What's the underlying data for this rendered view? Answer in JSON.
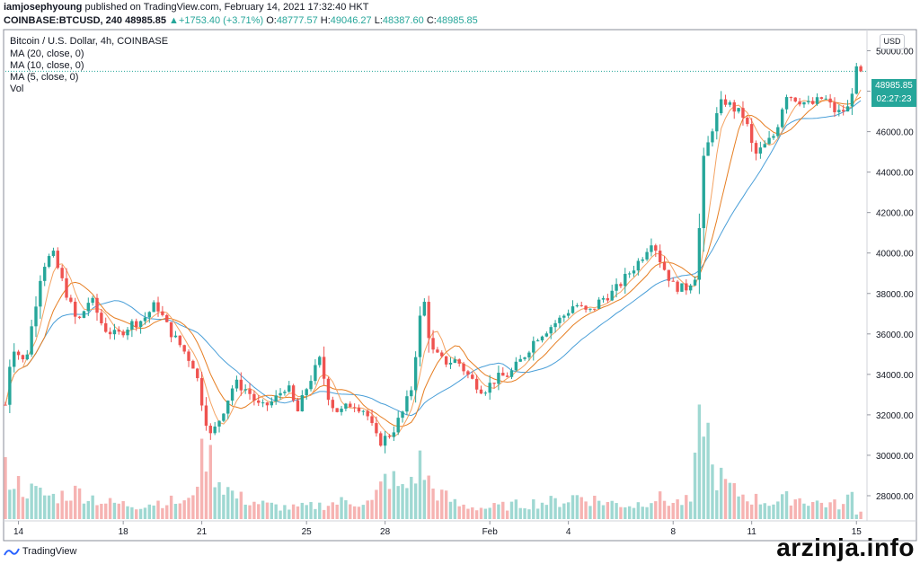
{
  "header": {
    "username": "iamjosephyoung",
    "published_text": "published on TradingView.com, February 14, 2021 17:32:40 HKT",
    "symbol": "COINBASE:BTCUSD, 240",
    "last": "48985.85",
    "change": "+1753.40 (+3.71%)",
    "open_label": "O:",
    "open": "48777.57",
    "high_label": "H:",
    "high": "49046.27",
    "low_label": "L:",
    "low": "48387.60",
    "close_label": "C:",
    "close": "48985.85"
  },
  "legend": {
    "title": "Bitcoin / U.S. Dollar, 4h, COINBASE",
    "ma20": "MA (20, close, 0)",
    "ma10": "MA (10, close, 0)",
    "ma5": "MA (5, close, 0)",
    "vol": "Vol"
  },
  "currency_button": "USD",
  "price_tag": {
    "price": "48985.85",
    "countdown": "02:27:23"
  },
  "footer": {
    "logo_text": "TradingView",
    "watermark": "arzinja.info"
  },
  "colors": {
    "up": "#26a69a",
    "down": "#ef5350",
    "vol_up": "#9fd8d2",
    "vol_down": "#f6b3b2",
    "ma5": "#f4a261",
    "ma10": "#e67e22",
    "ma20": "#4a9fd8"
  },
  "chart_data": {
    "type": "candlestick",
    "title": "Bitcoin / U.S. Dollar, 4h, COINBASE",
    "ylim": [
      26800,
      51000
    ],
    "y_ticks": [
      28000,
      30000,
      32000,
      34000,
      36000,
      38000,
      40000,
      42000,
      44000,
      46000,
      48000,
      50000
    ],
    "x_ticks": [
      {
        "label": "14",
        "t": 5.0
      },
      {
        "label": "18",
        "t": 9.0
      },
      {
        "label": "21",
        "t": 12.0
      },
      {
        "label": "25",
        "t": 16.0
      },
      {
        "label": "28",
        "t": 19.0
      },
      {
        "label": "Feb",
        "t": 23.0
      },
      {
        "label": "4",
        "t": 26.0
      },
      {
        "label": "8",
        "t": 30.0
      },
      {
        "label": "11",
        "t": 33.0
      },
      {
        "label": "15",
        "t": 37.0
      }
    ],
    "x_range_days": [
      4.5,
      37.3
    ],
    "last_price_line": 48985.85,
    "anchors": [
      [
        4.5,
        32500
      ],
      [
        4.75,
        35500
      ],
      [
        5.25,
        34500
      ],
      [
        5.9,
        39300
      ],
      [
        6.3,
        40000
      ],
      [
        6.75,
        38300
      ],
      [
        7.25,
        36500
      ],
      [
        7.75,
        37800
      ],
      [
        8.25,
        36300
      ],
      [
        8.75,
        35900
      ],
      [
        9.3,
        36500
      ],
      [
        9.75,
        36700
      ],
      [
        10.25,
        37500
      ],
      [
        10.75,
        36200
      ],
      [
        11.25,
        35300
      ],
      [
        11.75,
        34300
      ],
      [
        12.1,
        32000
      ],
      [
        12.35,
        30900
      ],
      [
        12.75,
        32000
      ],
      [
        13.25,
        33600
      ],
      [
        13.75,
        33200
      ],
      [
        14.25,
        32300
      ],
      [
        14.75,
        32700
      ],
      [
        15.25,
        33500
      ],
      [
        15.65,
        32100
      ],
      [
        16.05,
        33500
      ],
      [
        16.5,
        34700
      ],
      [
        16.9,
        32600
      ],
      [
        17.25,
        32100
      ],
      [
        17.75,
        32600
      ],
      [
        18.25,
        32200
      ],
      [
        18.75,
        30600
      ],
      [
        19.25,
        31100
      ],
      [
        19.7,
        32200
      ],
      [
        20.0,
        33300
      ],
      [
        20.45,
        38000
      ],
      [
        20.75,
        35200
      ],
      [
        21.25,
        34600
      ],
      [
        21.75,
        34700
      ],
      [
        22.25,
        33800
      ],
      [
        22.75,
        33200
      ],
      [
        23.25,
        33800
      ],
      [
        23.75,
        34000
      ],
      [
        24.25,
        34800
      ],
      [
        24.75,
        35800
      ],
      [
        25.25,
        36300
      ],
      [
        25.75,
        36800
      ],
      [
        26.25,
        37500
      ],
      [
        26.75,
        37000
      ],
      [
        27.25,
        37700
      ],
      [
        27.75,
        38100
      ],
      [
        28.25,
        38900
      ],
      [
        28.75,
        39700
      ],
      [
        29.2,
        40700
      ],
      [
        29.55,
        39500
      ],
      [
        30.0,
        38400
      ],
      [
        30.45,
        38200
      ],
      [
        30.9,
        39000
      ],
      [
        31.15,
        44500
      ],
      [
        31.5,
        46200
      ],
      [
        31.9,
        47600
      ],
      [
        32.35,
        47100
      ],
      [
        32.75,
        46700
      ],
      [
        33.1,
        44800
      ],
      [
        33.5,
        45300
      ],
      [
        33.9,
        45900
      ],
      [
        34.3,
        47900
      ],
      [
        34.75,
        47600
      ],
      [
        35.25,
        47300
      ],
      [
        35.75,
        47700
      ],
      [
        36.25,
        46900
      ],
      [
        36.75,
        47200
      ],
      [
        36.9,
        48780
      ],
      [
        37.0,
        48986
      ]
    ],
    "volume_anchors": [
      [
        4.5,
        0.34
      ],
      [
        5.2,
        0.22
      ],
      [
        6.3,
        0.16
      ],
      [
        7.3,
        0.2
      ],
      [
        8.3,
        0.12
      ],
      [
        9.5,
        0.1
      ],
      [
        10.5,
        0.13
      ],
      [
        11.5,
        0.12
      ],
      [
        12.15,
        0.52
      ],
      [
        12.6,
        0.3
      ],
      [
        13.3,
        0.16
      ],
      [
        14.5,
        0.1
      ],
      [
        15.5,
        0.08
      ],
      [
        16.5,
        0.1
      ],
      [
        17.5,
        0.13
      ],
      [
        18.5,
        0.12
      ],
      [
        19.1,
        0.32
      ],
      [
        19.7,
        0.2
      ],
      [
        20.35,
        0.4
      ],
      [
        20.8,
        0.22
      ],
      [
        21.8,
        0.1
      ],
      [
        22.8,
        0.08
      ],
      [
        23.8,
        0.1
      ],
      [
        24.8,
        0.12
      ],
      [
        25.8,
        0.13
      ],
      [
        26.3,
        0.17
      ],
      [
        27.5,
        0.12
      ],
      [
        28.5,
        0.1
      ],
      [
        29.3,
        0.16
      ],
      [
        30.0,
        0.12
      ],
      [
        30.7,
        0.13
      ],
      [
        31.15,
        0.88
      ],
      [
        31.5,
        0.35
      ],
      [
        32.3,
        0.2
      ],
      [
        33.2,
        0.14
      ],
      [
        33.9,
        0.12
      ],
      [
        34.5,
        0.16
      ],
      [
        35.5,
        0.12
      ],
      [
        36.5,
        0.1
      ],
      [
        36.9,
        0.2
      ],
      [
        37.0,
        0.05
      ]
    ]
  }
}
